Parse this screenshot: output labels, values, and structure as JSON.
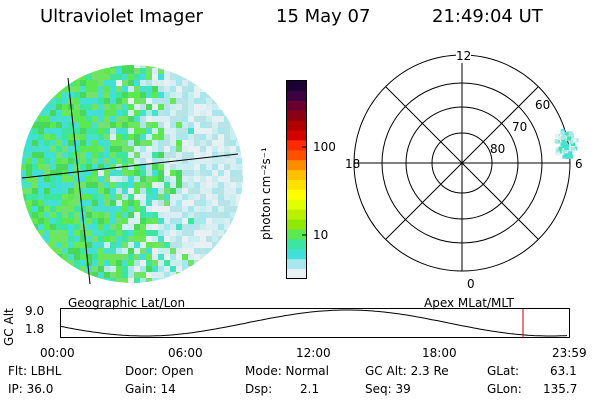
{
  "header": {
    "instrument": "Ultraviolet Imager",
    "date": "15 May 07",
    "time": "21:49:04 UT"
  },
  "colorbar": {
    "unit_label": "photon cm⁻²s⁻¹",
    "ticks": [
      "100",
      "10"
    ],
    "colors": [
      "#1a0033",
      "#3a0040",
      "#6a0030",
      "#8c0015",
      "#b00000",
      "#d40000",
      "#ff2a00",
      "#ff5000",
      "#ff8c00",
      "#ffc000",
      "#ffe100",
      "#ffff00",
      "#e0ff00",
      "#b8f000",
      "#90e800",
      "#5ce850",
      "#3ce6a0",
      "#40e0d8",
      "#a8e8ec",
      "#e8f0f4"
    ]
  },
  "left_panel": {
    "label": "Geographic Lat/Lon"
  },
  "right_panel": {
    "label": "Apex MLat/MLT",
    "mlt_labels": {
      "top": "12",
      "left": "18",
      "right": "6",
      "bottom": "0"
    },
    "mlat_labels": [
      "60",
      "70",
      "80"
    ]
  },
  "alt_plot": {
    "axis_label": "GC Alt",
    "y_ticks": [
      "9.0",
      "1.8"
    ],
    "x_ticks": [
      "00:00",
      "06:00",
      "12:00",
      "18:00",
      "23:59"
    ],
    "marker_color": "#cc0000"
  },
  "params": {
    "flt": "Flt: LBHL",
    "ip": "IP: 36.0",
    "door": "Door: Open",
    "gain": "Gain: 14",
    "mode": "Mode: Normal",
    "dsp": "Dsp:",
    "dsp_val": "2.1",
    "gcalt": "GC Alt: 2.3 Re",
    "seq": "Seq: 39",
    "glat": "GLat:",
    "glat_val": "63.1",
    "glon": "GLon:",
    "glon_val": "135.7"
  }
}
